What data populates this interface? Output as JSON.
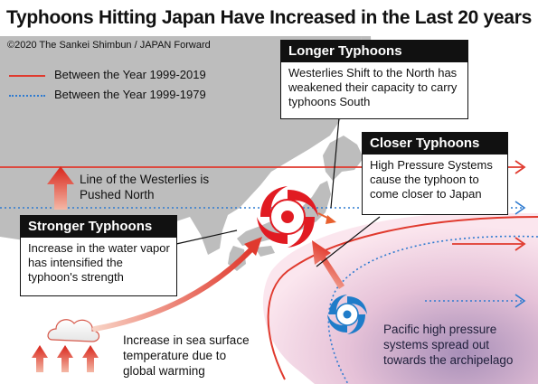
{
  "title": "Typhoons Hitting Japan Have Increased in the Last 20 years",
  "credit": "©2020 The Sankei Shimbun / JAPAN Forward",
  "legend": {
    "items": [
      {
        "label": "Between the Year 1999-2019",
        "color": "#e03a2e",
        "style": "solid"
      },
      {
        "label": "Between the Year 1999-1979",
        "color": "#2f7bd0",
        "style": "dotted"
      }
    ]
  },
  "callouts": {
    "longer": {
      "heading": "Longer Typhoons",
      "lines": [
        "Westerlies Shift to the North has",
        "weakened their capacity to carry",
        "typhoons South"
      ]
    },
    "closer": {
      "heading": "Closer Typhoons",
      "lines": [
        "High Pressure Systems",
        "cause the typhoon to",
        "come closer to Japan"
      ]
    },
    "stronger": {
      "heading": "Stronger Typhoons",
      "lines": [
        "Increase in the water vapor",
        "has intensified the",
        "typhoon's strength"
      ]
    }
  },
  "labels": {
    "westerlies": [
      "Line of the Westerlies is",
      "Pushed North"
    ],
    "sea_surface": [
      "Increase in sea surface",
      "temperature due to",
      "global warming"
    ],
    "pacific_high": [
      "Pacific high pressure",
      "systems spread out",
      "towards the archipelago"
    ]
  },
  "colors": {
    "land": "#bdbdbd",
    "recent_line": "#e03a2e",
    "past_line": "#2f7bd0",
    "high_pressure": "#c9a3c8",
    "typhoon_red": "#e11b22",
    "typhoon_blue": "#1f7cc9"
  },
  "icons": [
    "typhoon-symbol-red",
    "typhoon-symbol-blue",
    "cloud-icon",
    "up-arrow-icon"
  ]
}
